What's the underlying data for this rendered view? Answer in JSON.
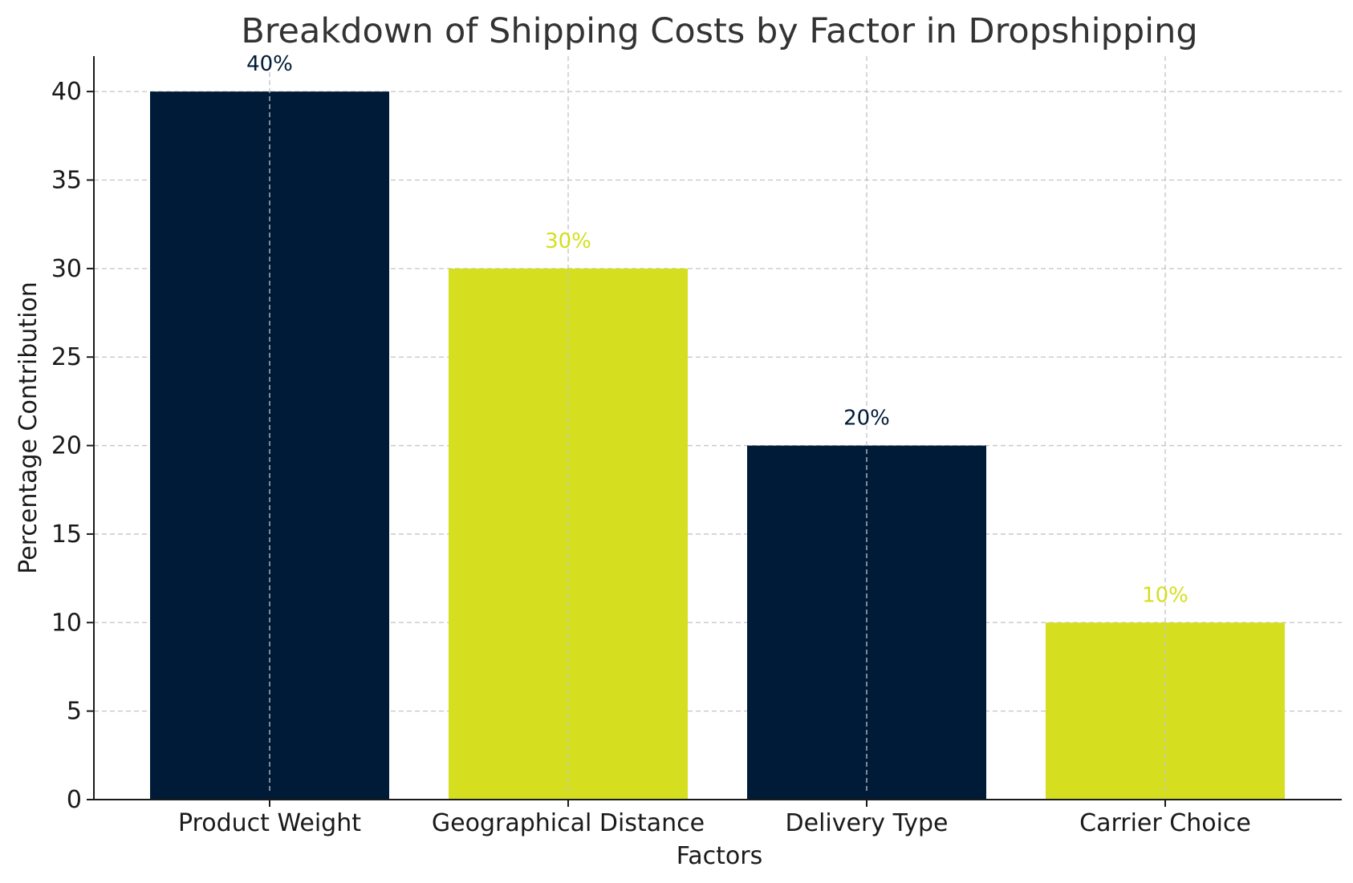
{
  "chart_data": {
    "type": "bar",
    "title": "Breakdown of Shipping Costs by Factor in Dropshipping",
    "xlabel": "Factors",
    "ylabel": "Percentage Contribution",
    "categories": [
      "Product Weight",
      "Geographical Distance",
      "Delivery Type",
      "Carrier Choice"
    ],
    "values": [
      40,
      30,
      20,
      10
    ],
    "data_labels": [
      "40%",
      "30%",
      "20%",
      "10%"
    ],
    "bar_colors": [
      "#001b38",
      "#d5df1f",
      "#001b38",
      "#d5df1f"
    ],
    "ylim": [
      0,
      42
    ],
    "yticks": [
      0,
      5,
      10,
      15,
      20,
      25,
      30,
      35,
      40
    ],
    "grid": true,
    "grid_style": "dashed",
    "legend": "none"
  }
}
